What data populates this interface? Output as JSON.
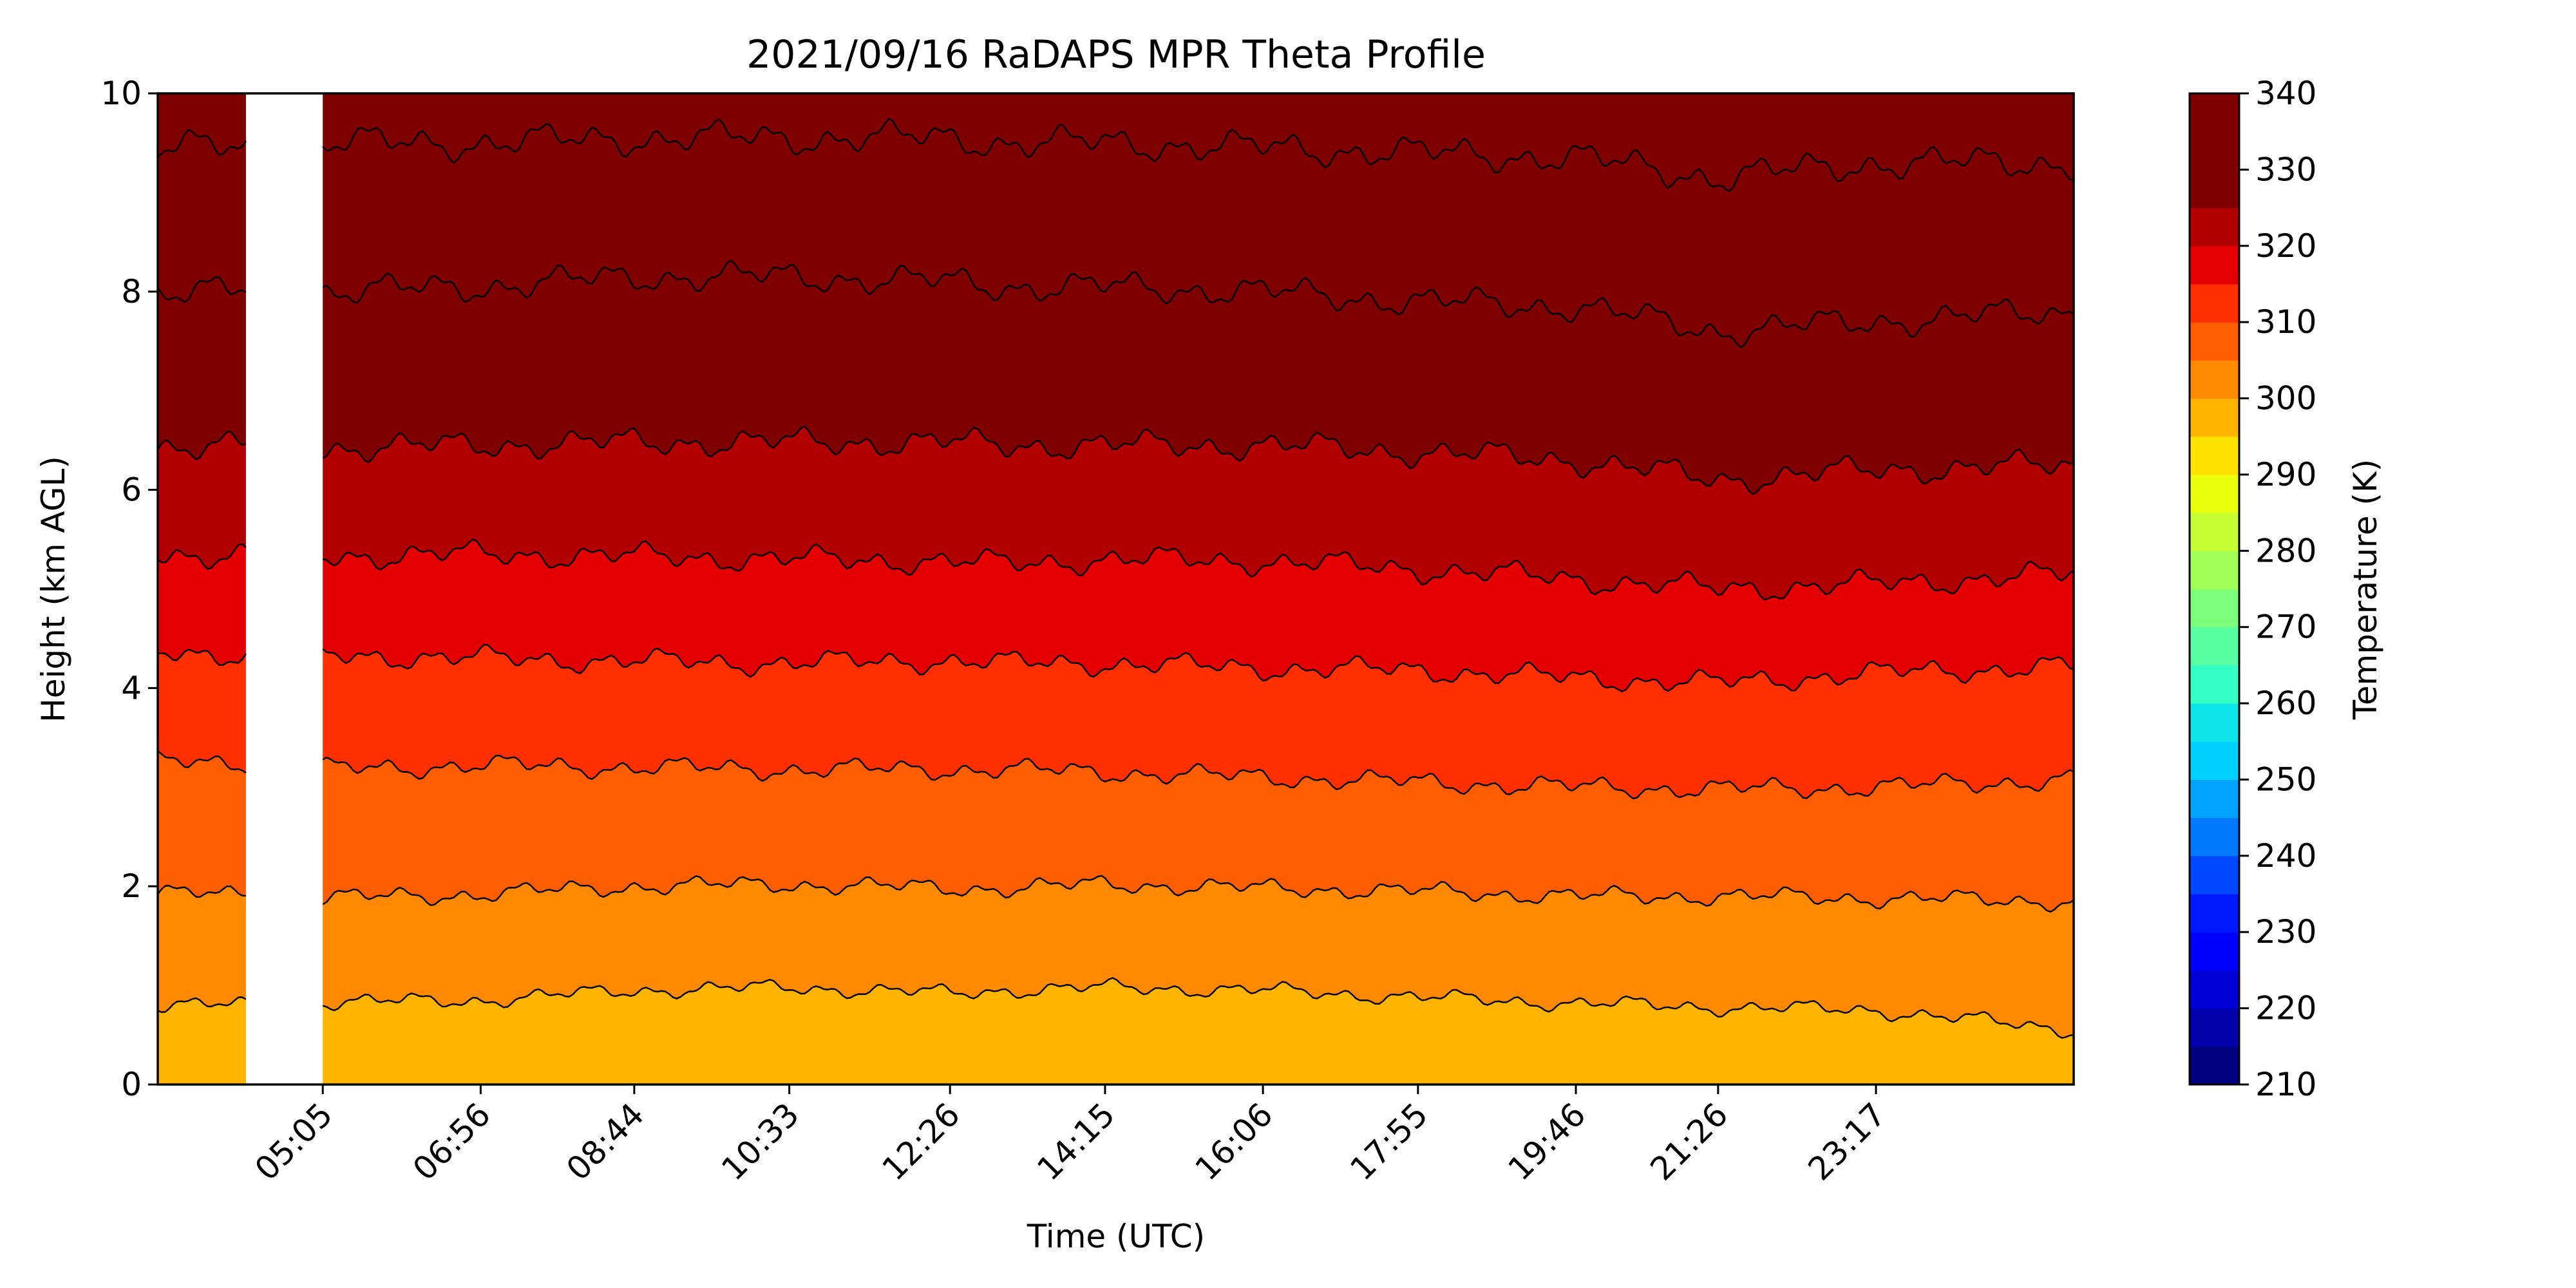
{
  "chart_data": {
    "type": "area",
    "title": "2021/09/16 RaDAPS MPR Theta Profile",
    "xlabel": "Time (UTC)",
    "ylabel": "Height (km AGL)",
    "xlim": [
      "03:09",
      "01:36"
    ],
    "ylim": [
      0,
      10
    ],
    "y_ticks": [
      0,
      2,
      4,
      6,
      8,
      10
    ],
    "x_ticks": [
      "05:05",
      "06:56",
      "08:44",
      "10:33",
      "12:26",
      "14:15",
      "16:06",
      "17:55",
      "19:46",
      "21:26",
      "23:17"
    ],
    "x_tick_rotation_deg": 45,
    "grid": false,
    "data_gaps": [
      {
        "start": "04:11",
        "end": "05:05",
        "note": "no data"
      }
    ],
    "contour_levels_k": [
      210,
      215,
      220,
      225,
      230,
      235,
      240,
      245,
      250,
      255,
      260,
      265,
      270,
      275,
      280,
      285,
      290,
      295,
      300,
      305,
      310,
      315,
      320,
      325,
      330,
      335,
      340
    ],
    "contour_lines": [
      {
        "level_k": 300,
        "x": [
          "03:09",
          "04:11",
          "05:05",
          "06:56",
          "08:44",
          "10:33",
          "12:26",
          "13:05",
          "14:15",
          "16:06",
          "17:55",
          "19:46",
          "21:26",
          "23:17",
          "01:36"
        ],
        "height_km": [
          0.8,
          0.8,
          0.83,
          0.85,
          0.95,
          0.98,
          0.92,
          0.95,
          0.98,
          0.95,
          0.88,
          0.82,
          0.78,
          0.75,
          0.55
        ]
      },
      {
        "level_k": 305,
        "x": [
          "03:09",
          "04:11",
          "05:05",
          "06:56",
          "08:44",
          "10:33",
          "12:26",
          "13:05",
          "14:15",
          "16:06",
          "17:55",
          "19:46",
          "21:26",
          "23:17",
          "01:36"
        ],
        "height_km": [
          1.92,
          1.92,
          1.88,
          1.92,
          2.0,
          2.02,
          1.98,
          1.98,
          2.02,
          1.98,
          1.95,
          1.9,
          1.9,
          1.88,
          1.85
        ]
      },
      {
        "level_k": 310,
        "x": [
          "03:09",
          "04:11",
          "05:05",
          "06:56",
          "08:44",
          "10:33",
          "12:26",
          "13:05",
          "14:15",
          "16:06",
          "17:55",
          "19:46",
          "21:26",
          "23:17",
          "01:36"
        ],
        "height_km": [
          3.25,
          3.25,
          3.18,
          3.22,
          3.2,
          3.18,
          3.18,
          3.18,
          3.15,
          3.1,
          3.05,
          3.0,
          2.98,
          3.0,
          3.08
        ]
      },
      {
        "level_k": 315,
        "x": [
          "03:09",
          "04:11",
          "05:05",
          "06:56",
          "08:44",
          "10:33",
          "12:26",
          "13:05",
          "14:15",
          "16:06",
          "17:55",
          "19:46",
          "21:26",
          "23:17",
          "01:36"
        ],
        "height_km": [
          4.35,
          4.35,
          4.33,
          4.3,
          4.27,
          4.25,
          4.28,
          4.25,
          4.25,
          4.2,
          4.18,
          4.1,
          4.05,
          4.15,
          4.22
        ]
      },
      {
        "level_k": 320,
        "x": [
          "03:09",
          "04:11",
          "05:05",
          "06:56",
          "08:44",
          "10:33",
          "12:26",
          "13:05",
          "14:15",
          "16:06",
          "17:55",
          "19:46",
          "21:26",
          "23:17",
          "01:36"
        ],
        "height_km": [
          5.35,
          5.35,
          5.33,
          5.35,
          5.33,
          5.3,
          5.28,
          5.25,
          5.3,
          5.28,
          5.2,
          5.1,
          5.0,
          5.05,
          5.15
        ]
      },
      {
        "level_k": 325,
        "x": [
          "03:09",
          "04:11",
          "05:05",
          "06:56",
          "08:44",
          "10:33",
          "12:26",
          "13:05",
          "14:15",
          "16:06",
          "17:55",
          "19:46",
          "21:26",
          "23:17",
          "01:36"
        ],
        "height_km": [
          6.45,
          6.45,
          6.42,
          6.45,
          6.48,
          6.48,
          6.48,
          6.45,
          6.45,
          6.45,
          6.38,
          6.3,
          6.1,
          6.2,
          6.25
        ]
      },
      {
        "level_k": 330,
        "x": [
          "03:09",
          "04:11",
          "05:05",
          "06:56",
          "08:44",
          "10:33",
          "12:26",
          "13:05",
          "14:15",
          "16:06",
          "17:55",
          "19:46",
          "21:26",
          "23:17",
          "01:36"
        ],
        "height_km": [
          8.0,
          8.0,
          8.0,
          8.05,
          8.15,
          8.15,
          8.1,
          8.05,
          8.05,
          8.0,
          7.9,
          7.85,
          7.6,
          7.7,
          7.8
        ]
      },
      {
        "level_k": 335,
        "x": [
          "03:09",
          "04:11",
          "05:05",
          "06:56",
          "08:44",
          "10:33",
          "12:26",
          "13:05",
          "14:15",
          "16:06",
          "17:55",
          "19:46",
          "21:26",
          "23:17",
          "01:36"
        ],
        "height_km": [
          9.45,
          9.45,
          9.5,
          9.5,
          9.55,
          9.55,
          9.55,
          9.5,
          9.5,
          9.45,
          9.4,
          9.35,
          9.15,
          9.3,
          9.3
        ]
      }
    ],
    "colorbar": {
      "label": "Temperature (K)",
      "min": 210,
      "max": 340,
      "ticks": [
        210,
        220,
        230,
        240,
        250,
        260,
        270,
        280,
        290,
        300,
        310,
        320,
        330,
        340
      ],
      "colormap": "jet",
      "band_colors": [
        "#00007f",
        "#0000ac",
        "#0000d6",
        "#0000ff",
        "#0018ff",
        "#0048ff",
        "#0078ff",
        "#00a4ff",
        "#00d0ff",
        "#0ce4ea",
        "#33ffc4",
        "#55ffa2",
        "#7cff7a",
        "#a2ff55",
        "#c4ff33",
        "#eaff0c",
        "#ffe200",
        "#ffb400",
        "#ff8900",
        "#ff5e00",
        "#ff2f00",
        "#e40000",
        "#b20000",
        "#7f0000",
        "#7f0000",
        "#7f0000"
      ]
    }
  }
}
